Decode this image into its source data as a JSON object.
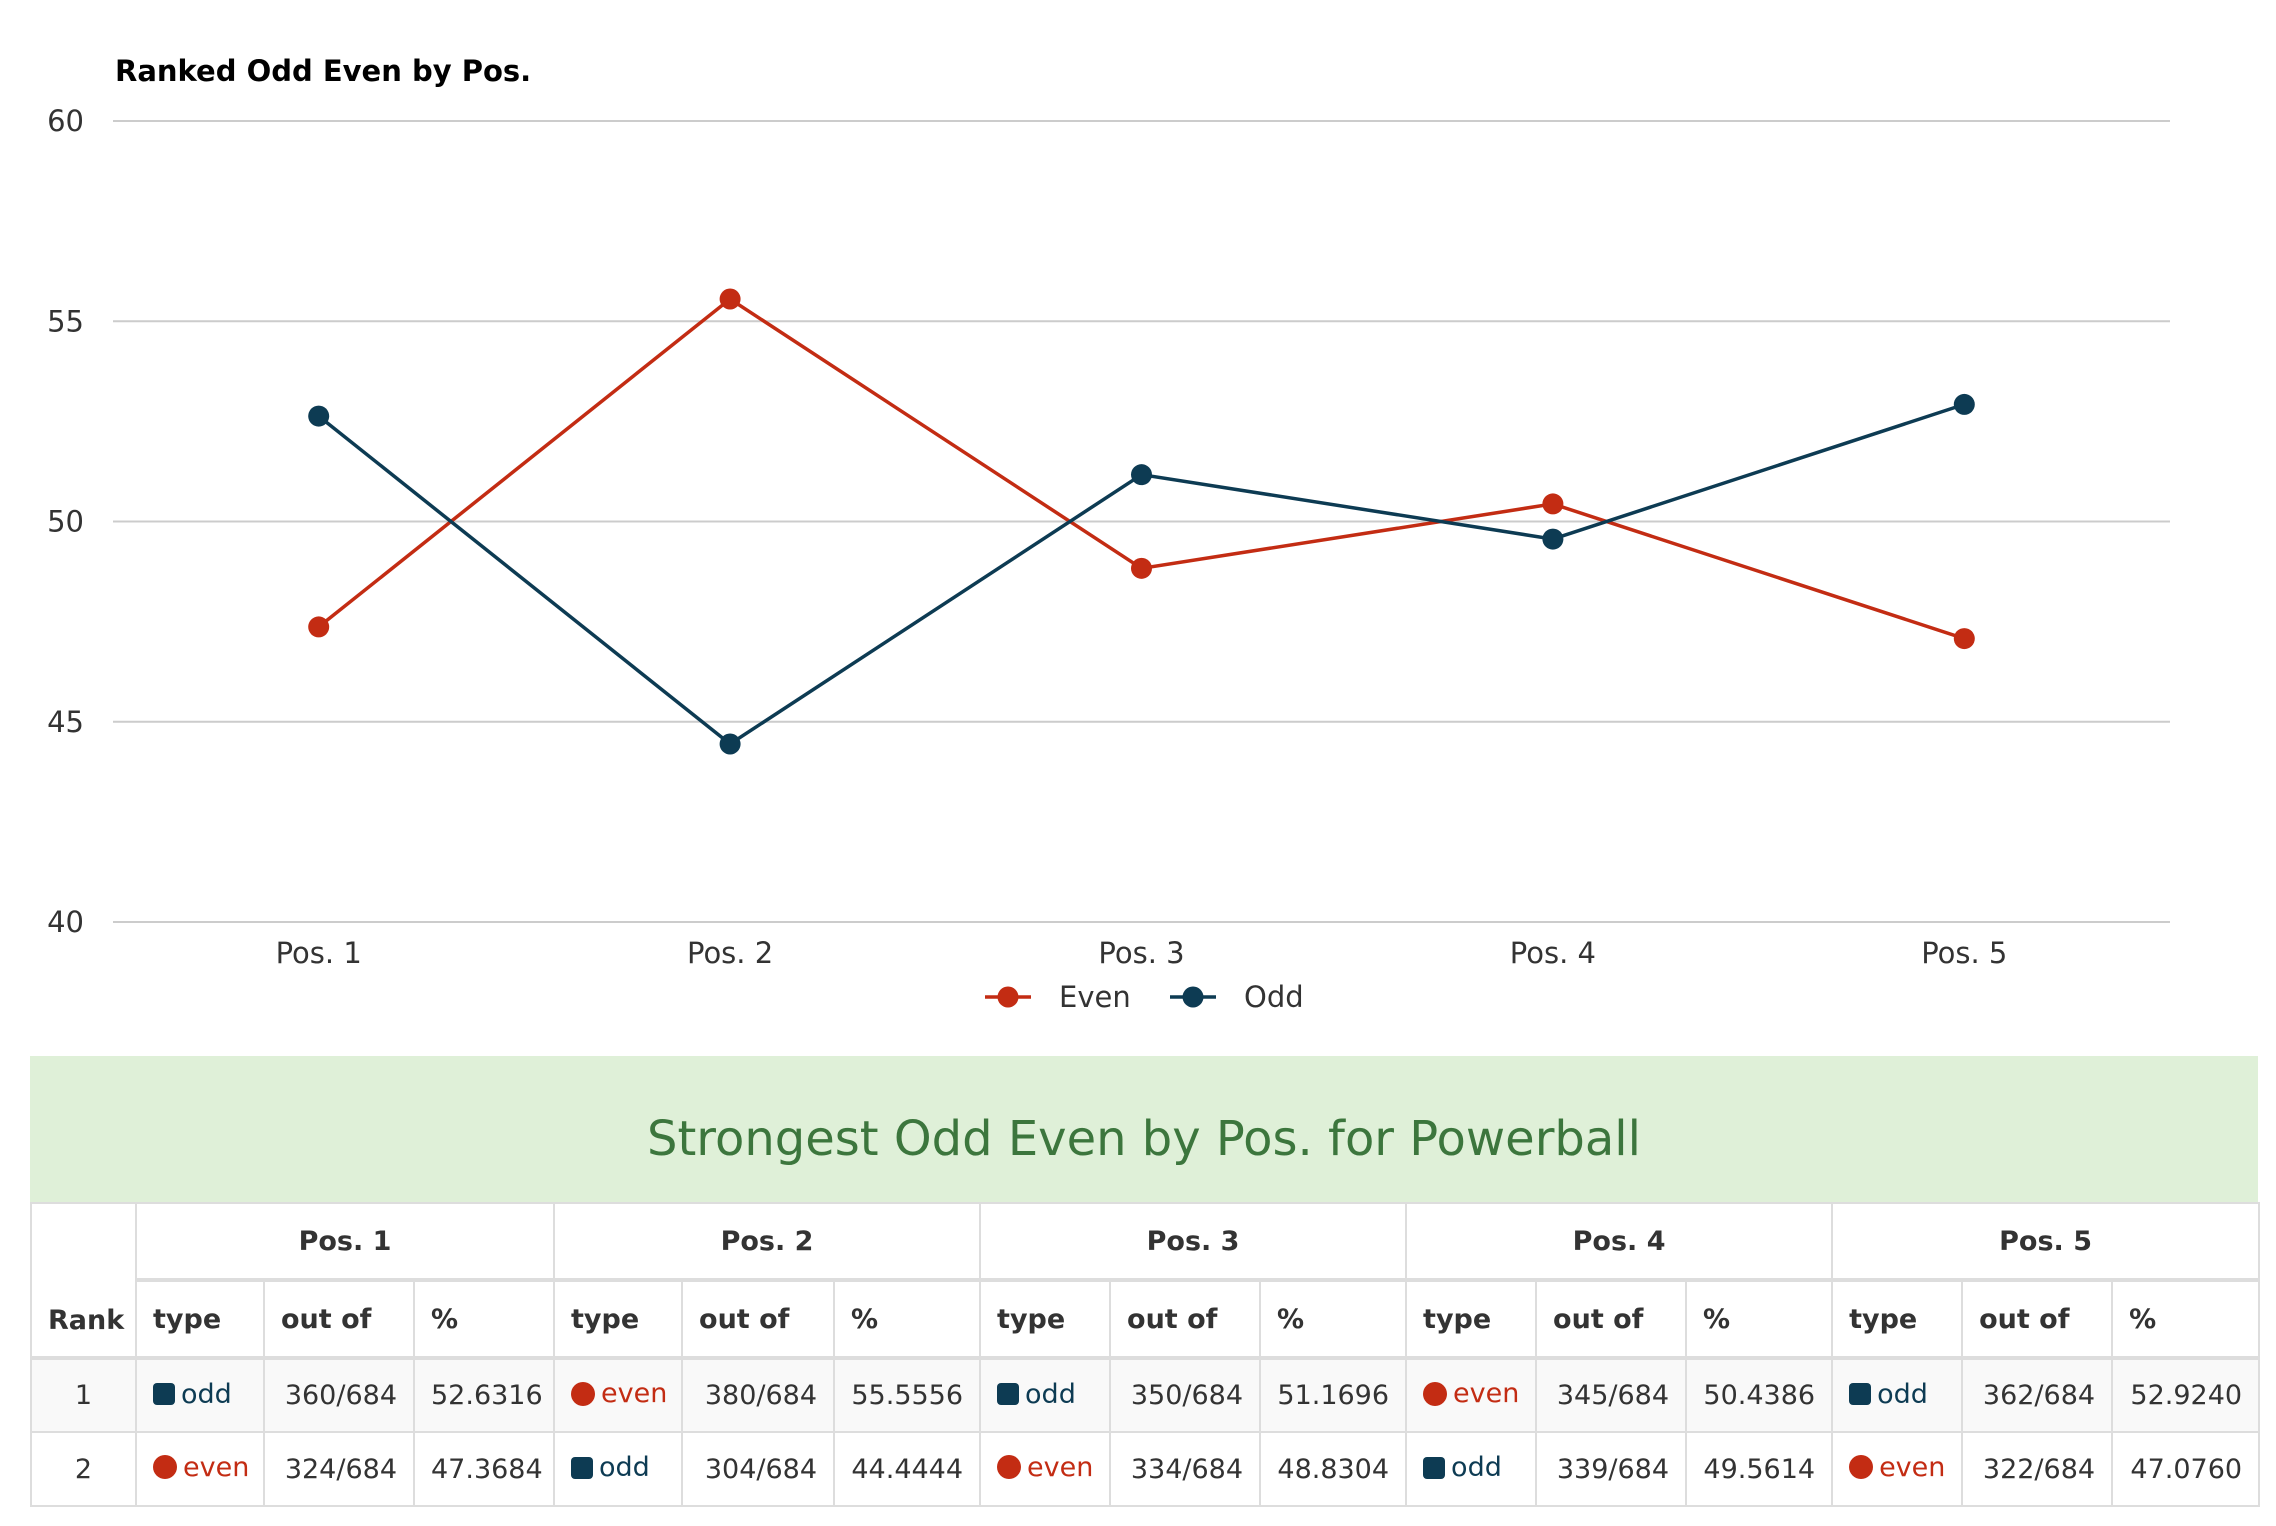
{
  "chart_data": {
    "type": "line",
    "title": "Ranked Odd Even by Pos.",
    "categories": [
      "Pos. 1",
      "Pos. 2",
      "Pos. 3",
      "Pos. 4",
      "Pos. 5"
    ],
    "ylim": [
      40,
      60
    ],
    "yticks": [
      "40",
      "45",
      "50",
      "55",
      "60"
    ],
    "grid": true,
    "legend_position": "bottom-center",
    "series": [
      {
        "name": "Even",
        "color": "#c32c13",
        "values": [
          47.3684,
          55.5556,
          48.8304,
          50.4386,
          47.076
        ]
      },
      {
        "name": "Odd",
        "color": "#0d3b53",
        "values": [
          52.6316,
          44.4444,
          51.1696,
          49.5614,
          52.924
        ]
      }
    ]
  },
  "table": {
    "title": "Strongest Odd Even by Pos. for Powerball",
    "rank_header": "Rank",
    "positions": [
      "Pos. 1",
      "Pos. 2",
      "Pos. 3",
      "Pos. 4",
      "Pos. 5"
    ],
    "sub_headers": {
      "type": "type",
      "out_of": "out of",
      "pct": "%"
    },
    "rows": [
      {
        "rank": "1",
        "cells": [
          {
            "type": "odd",
            "out_of": "360/684",
            "pct": "52.6316"
          },
          {
            "type": "even",
            "out_of": "380/684",
            "pct": "55.5556"
          },
          {
            "type": "odd",
            "out_of": "350/684",
            "pct": "51.1696"
          },
          {
            "type": "even",
            "out_of": "345/684",
            "pct": "50.4386"
          },
          {
            "type": "odd",
            "out_of": "362/684",
            "pct": "52.9240"
          }
        ]
      },
      {
        "rank": "2",
        "cells": [
          {
            "type": "even",
            "out_of": "324/684",
            "pct": "47.3684"
          },
          {
            "type": "odd",
            "out_of": "304/684",
            "pct": "44.4444"
          },
          {
            "type": "even",
            "out_of": "334/684",
            "pct": "48.8304"
          },
          {
            "type": "odd",
            "out_of": "339/684",
            "pct": "49.5614"
          },
          {
            "type": "even",
            "out_of": "322/684",
            "pct": "47.0760"
          }
        ]
      }
    ]
  },
  "colors": {
    "even": "#c32c13",
    "odd": "#0d3b53",
    "header_bg": "#dff0d8",
    "header_text": "#3c763d"
  }
}
